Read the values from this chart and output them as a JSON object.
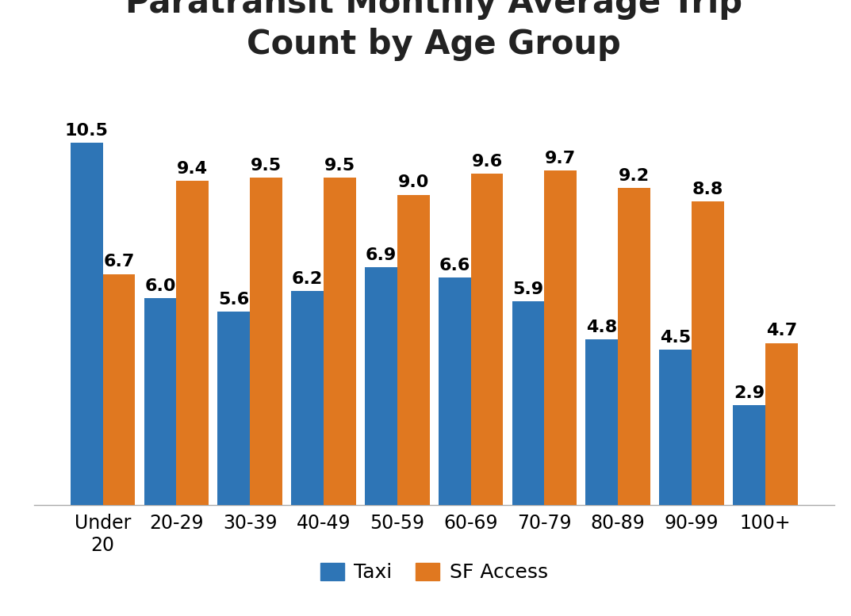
{
  "title": "Paratransit Monthly Average Trip\nCount by Age Group",
  "categories": [
    "Under\n20",
    "20-29",
    "30-39",
    "40-49",
    "50-59",
    "60-69",
    "70-79",
    "80-89",
    "90-99",
    "100+"
  ],
  "taxi_values": [
    10.5,
    6.0,
    5.6,
    6.2,
    6.9,
    6.6,
    5.9,
    4.8,
    4.5,
    2.9
  ],
  "sfaccess_values": [
    6.7,
    9.4,
    9.5,
    9.5,
    9.0,
    9.6,
    9.7,
    9.2,
    8.8,
    4.7
  ],
  "taxi_color": "#2E75B6",
  "sfaccess_color": "#E07820",
  "background_color": "#FFFFFF",
  "title_fontsize": 30,
  "label_fontsize": 16,
  "tick_fontsize": 17,
  "legend_fontsize": 18,
  "bar_width": 0.44,
  "ylim": [
    0,
    12.5
  ],
  "legend_labels": [
    "Taxi",
    "SF Access"
  ]
}
